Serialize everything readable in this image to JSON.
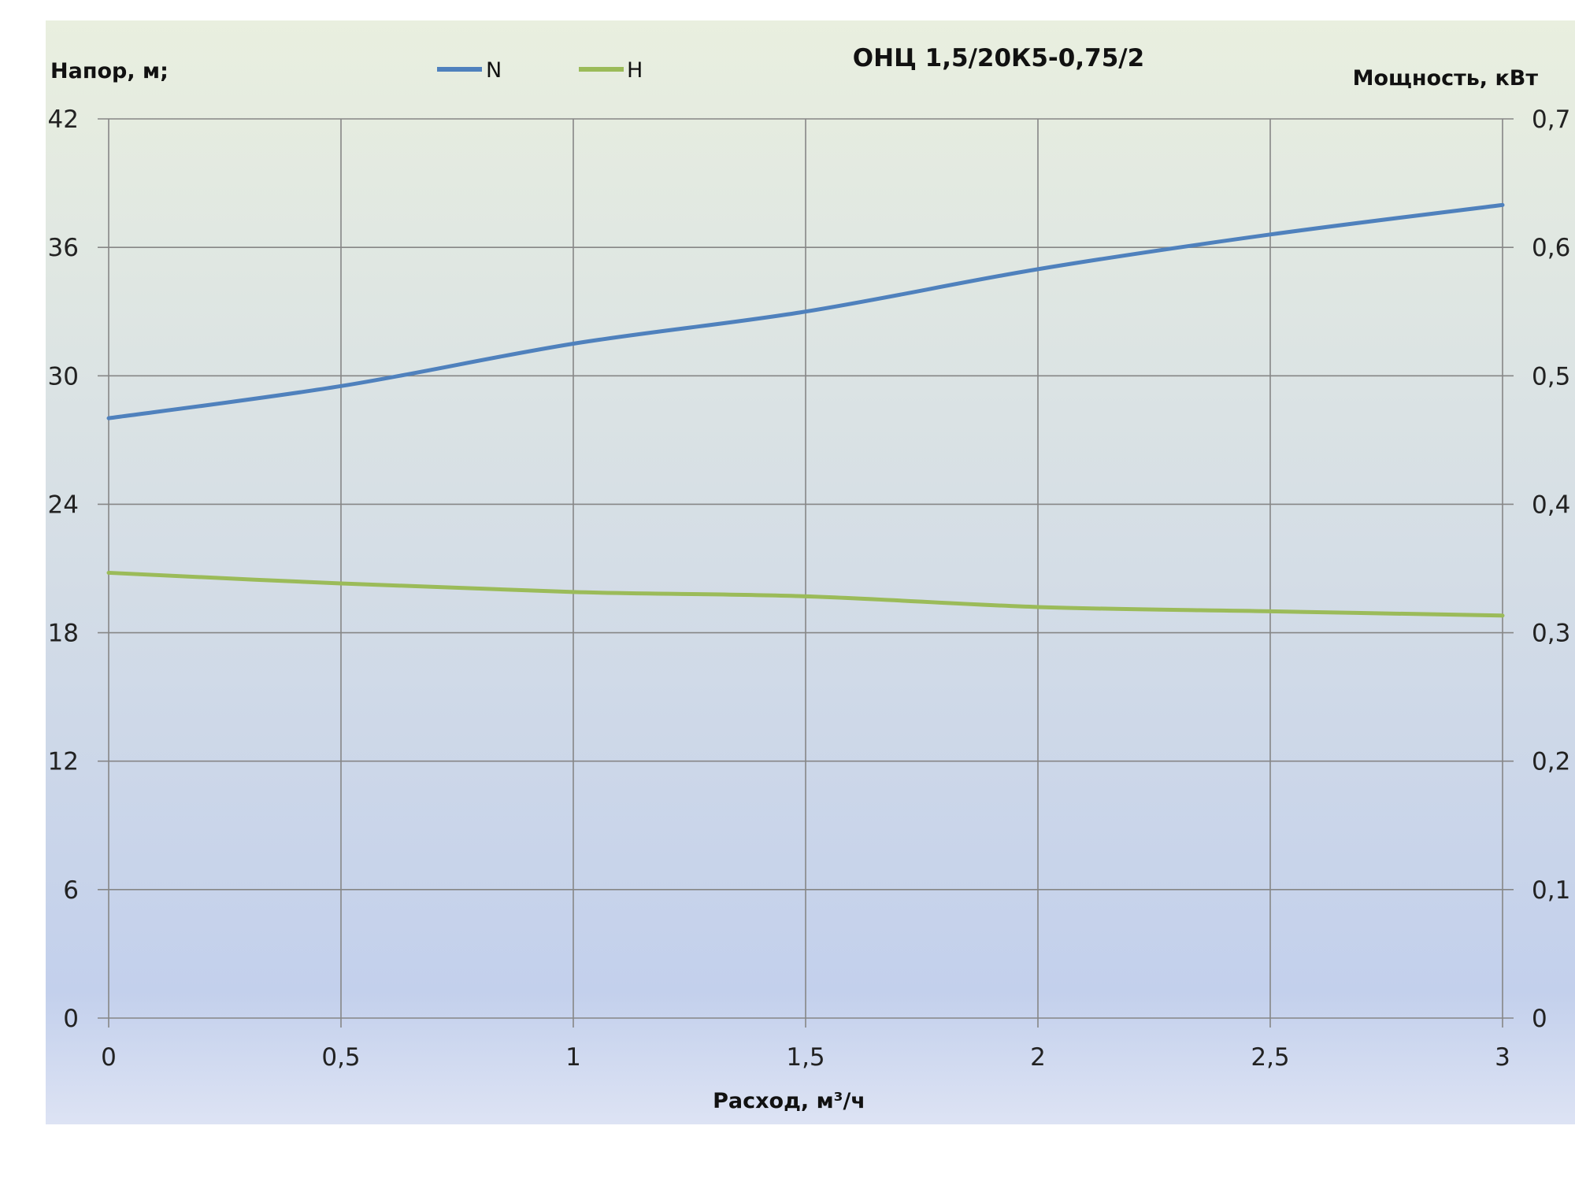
{
  "chart_data": {
    "type": "line",
    "title": "ОНЦ 1,5/20К5-0,75/2",
    "xlabel": "Расход, м³/ч",
    "ylabel_left": "Напор, м;",
    "ylabel_right": "Мощность, кВт",
    "x": [
      0,
      0.5,
      1,
      1.5,
      2,
      2.5,
      3
    ],
    "xlim": [
      0,
      3
    ],
    "ylim_left": [
      0,
      42
    ],
    "ylim_right": [
      0,
      0.7
    ],
    "x_ticks": [
      "0",
      "0,5",
      "1",
      "1,5",
      "2",
      "2,5",
      "3"
    ],
    "y_left_ticks": [
      "0",
      "6",
      "12",
      "18",
      "24",
      "30",
      "36",
      "42"
    ],
    "y_right_ticks": [
      "0",
      "0,1",
      "0,2",
      "0,3",
      "0,4",
      "0,5",
      "0,6",
      "0,7"
    ],
    "grid": true,
    "legend_position": "top-left",
    "series": [
      {
        "name": "N",
        "axis": "right",
        "color": "#4f81bd",
        "values": [
          0.467,
          0.492,
          0.525,
          0.55,
          0.583,
          0.61,
          0.633
        ]
      },
      {
        "name": "H",
        "axis": "left",
        "color": "#9bbb59",
        "values": [
          20.8,
          20.3,
          19.9,
          19.7,
          19.2,
          19.0,
          18.8
        ]
      }
    ]
  }
}
